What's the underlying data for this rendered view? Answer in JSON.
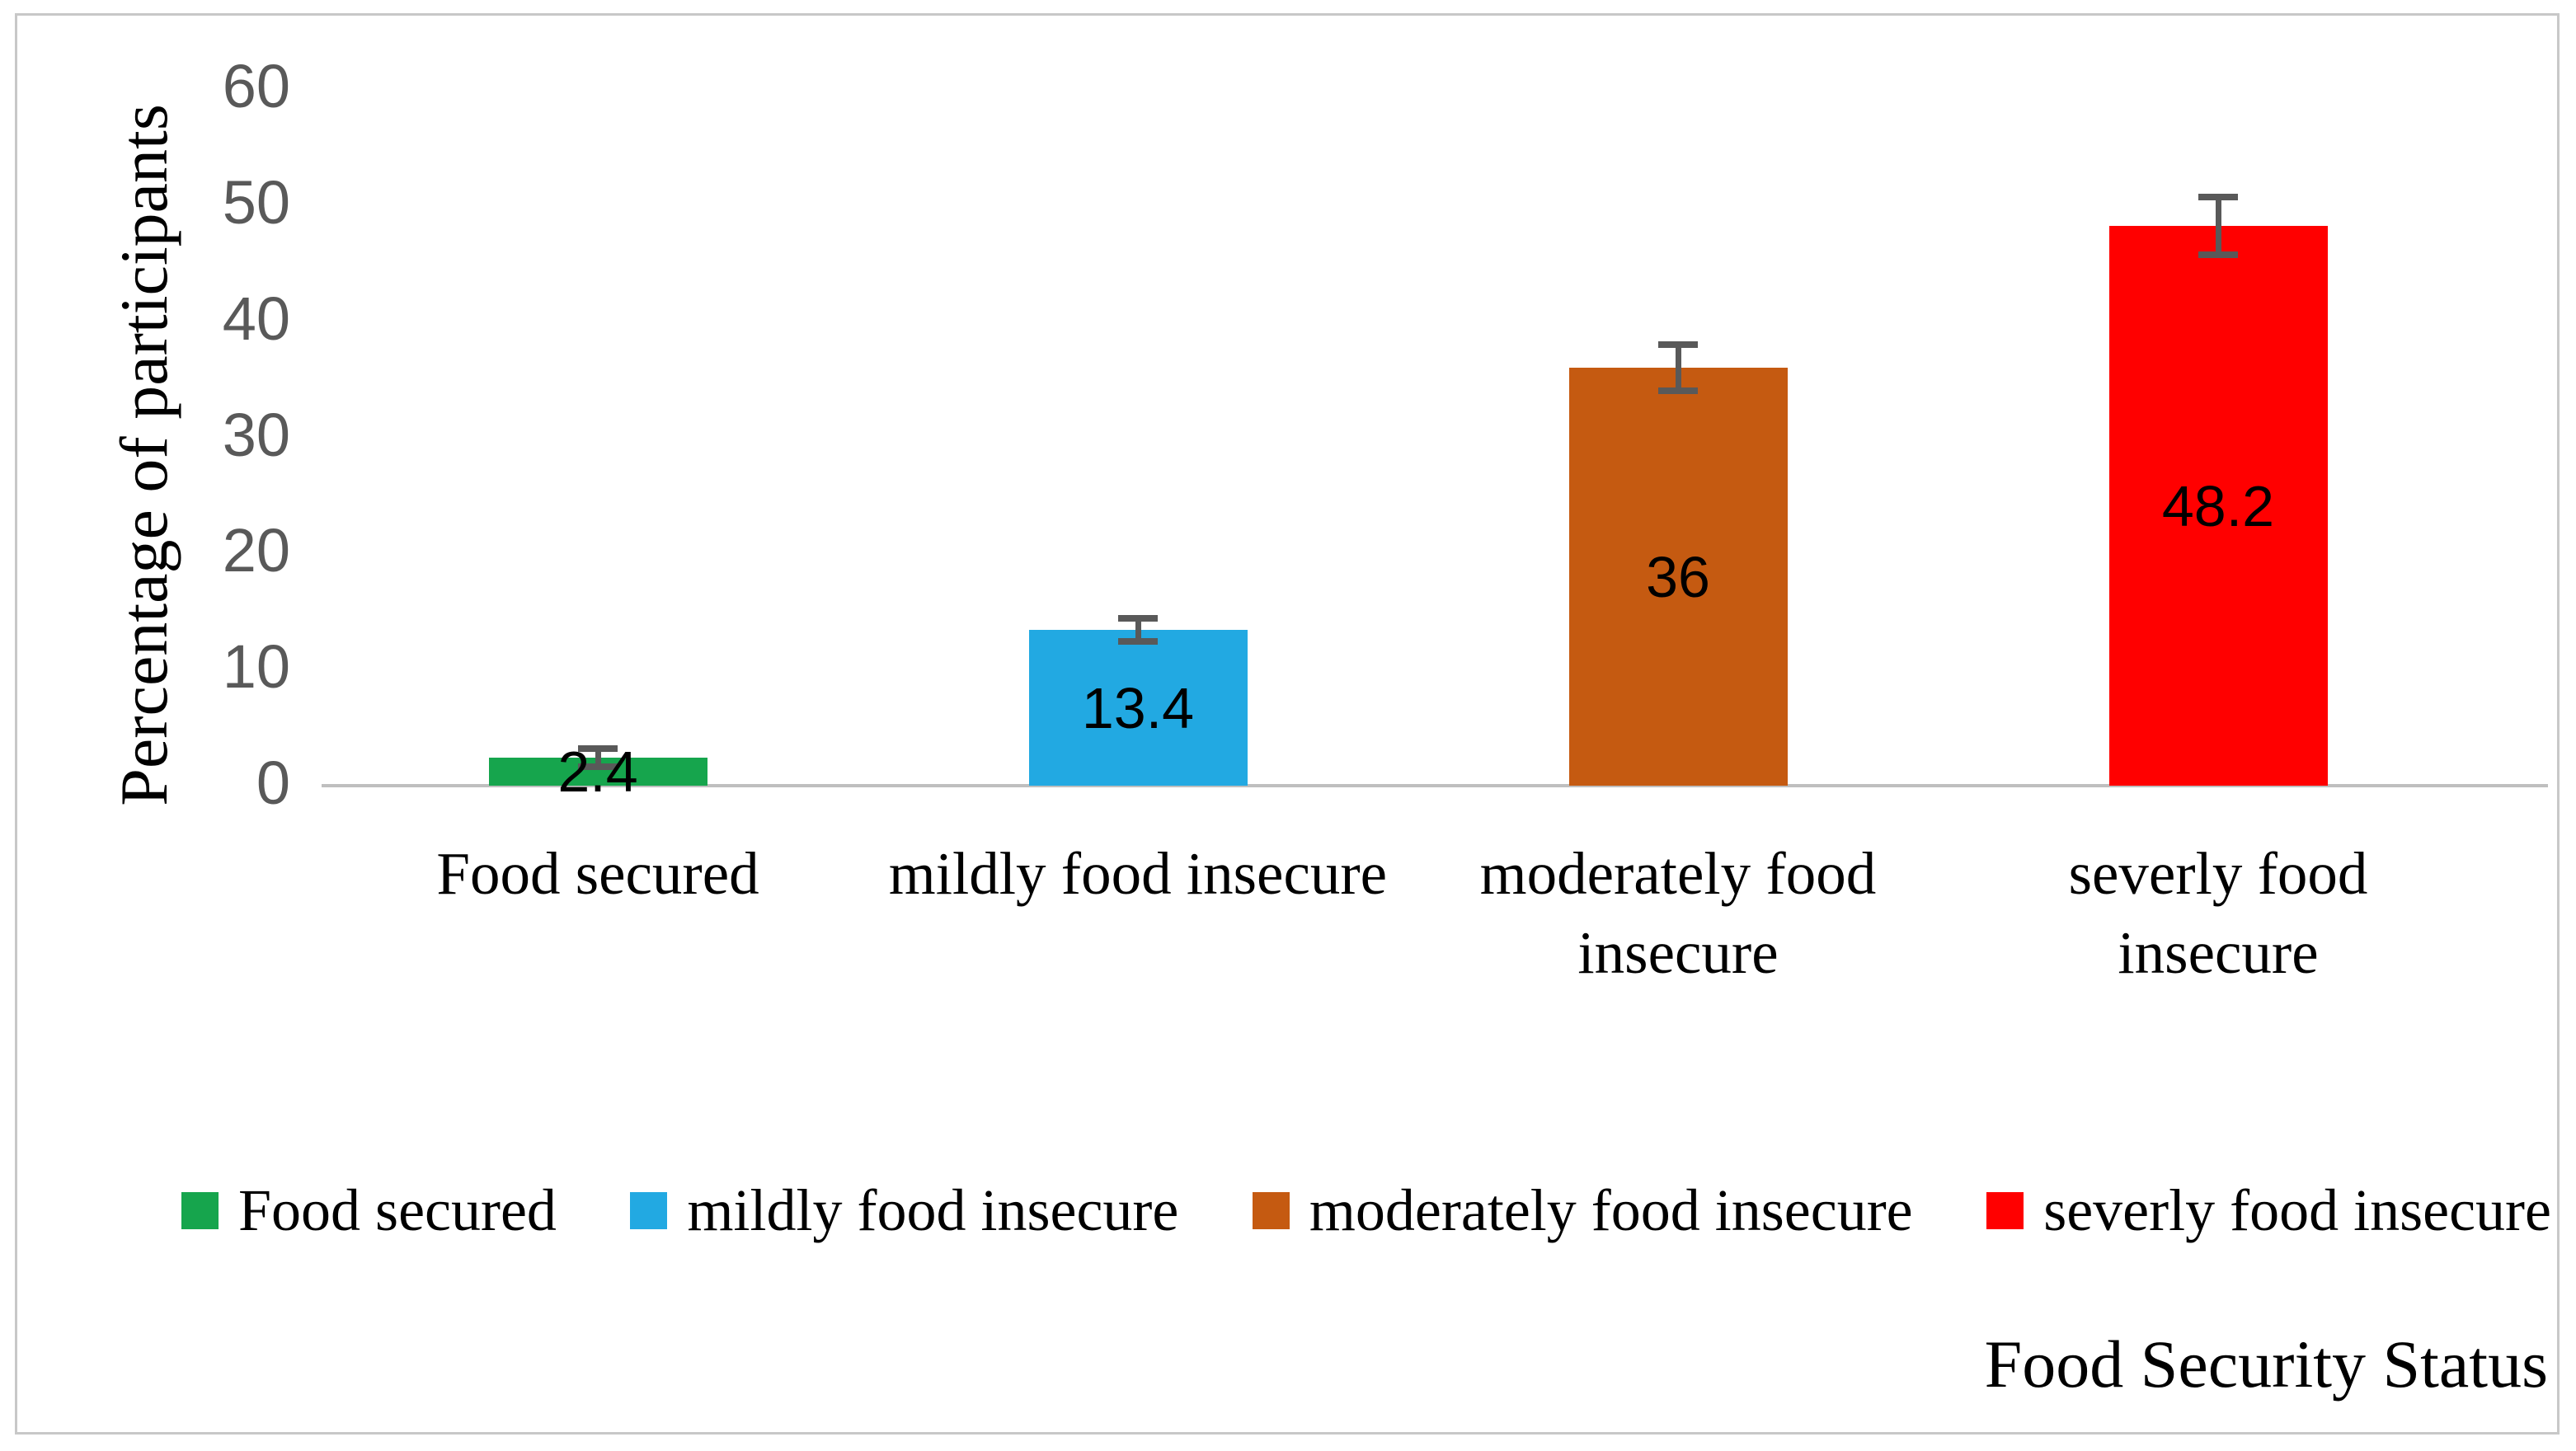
{
  "figure": {
    "background": "#FFFFFF",
    "border_color": "#C8C8C8"
  },
  "chart_data": {
    "type": "bar",
    "title": "",
    "xlabel": "Food Security Status",
    "ylabel": "Percentage of participants",
    "ylim": [
      0,
      60
    ],
    "yticks": [
      0,
      10,
      20,
      30,
      40,
      50,
      60
    ],
    "grid": false,
    "legend_position": "bottom",
    "categories": [
      "Food secured",
      "mildly food insecure",
      "moderately food insecure",
      "severly food insecure"
    ],
    "values": [
      2.4,
      13.4,
      36,
      48.2
    ],
    "data_labels": [
      "2.4",
      "13.4",
      "36",
      "48.2"
    ],
    "errors": [
      0.8,
      1.0,
      2.0,
      2.5
    ],
    "bars": [
      {
        "label": "Food secured",
        "lines": [
          "Food secured"
        ],
        "value": 2.4,
        "display": "2.4",
        "error": 0.8,
        "color": "#16A54D"
      },
      {
        "label": "mildly food insecure",
        "lines": [
          "mildly food insecure"
        ],
        "value": 13.4,
        "display": "13.4",
        "error": 1.0,
        "color": "#22A9E2"
      },
      {
        "label": "moderately food insecure",
        "lines": [
          "moderately food",
          "insecure"
        ],
        "value": 36,
        "display": "36",
        "error": 2.0,
        "color": "#C55A11"
      },
      {
        "label": "severly food insecure",
        "lines": [
          "severly food",
          "insecure"
        ],
        "value": 48.2,
        "display": "48.2",
        "error": 2.5,
        "color": "#FF0000"
      }
    ],
    "legend": [
      "Food secured",
      "mildly food insecure",
      "moderately food insecure",
      "severly food insecure"
    ],
    "colors": {
      "axis_line": "#BFBFBF",
      "tick_text": "#595959",
      "error_bar": "#595959",
      "data_label_text": "#000000",
      "label_text": "#000000"
    }
  }
}
